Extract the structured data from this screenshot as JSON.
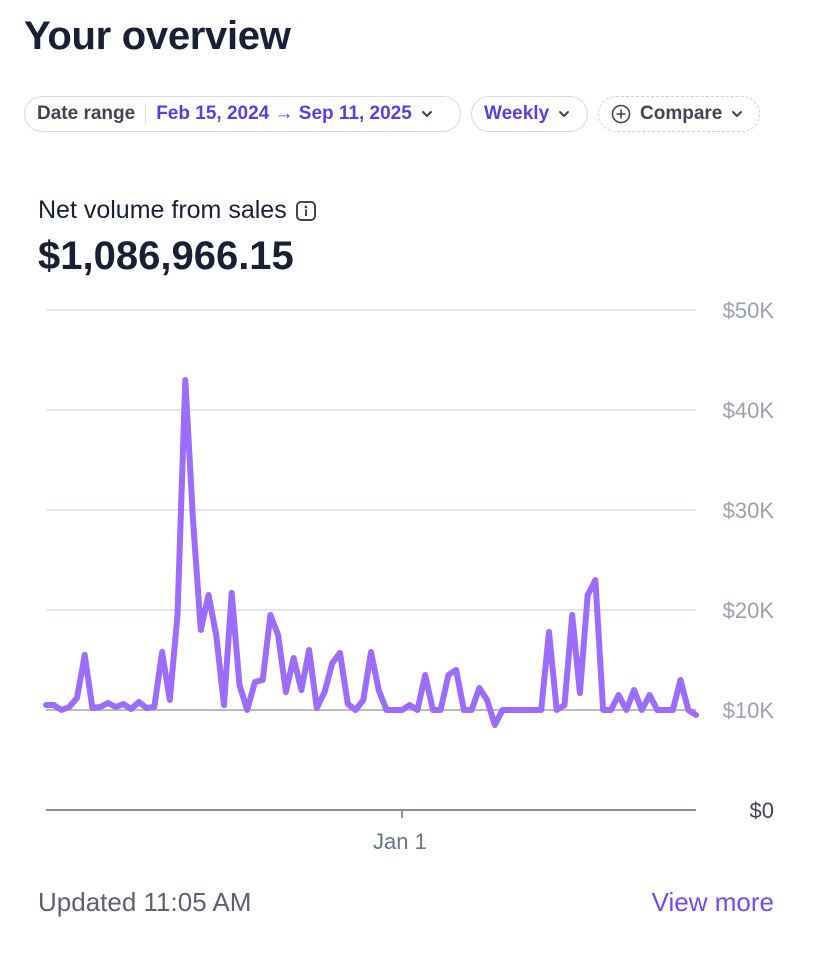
{
  "page": {
    "title": "Your overview"
  },
  "filters": {
    "date_range_label": "Date range",
    "date_range_value": "Feb 15, 2024 → Sep 11, 2025",
    "interval": "Weekly",
    "compare_label": "Compare"
  },
  "metric": {
    "label": "Net volume from sales",
    "value": "$1,086,966.15"
  },
  "footer": {
    "updated": "Updated 11:05 AM",
    "view_more": "View more"
  },
  "colors": {
    "line": "#9c6cff",
    "accent": "#5b3ee0",
    "grid": "#e3e6ec",
    "baseline": "#8a8f99"
  },
  "chart_data": {
    "type": "line",
    "title": "",
    "xlabel": "",
    "ylabel": "",
    "ylim": [
      0,
      50000
    ],
    "y_ticks": [
      0,
      10000,
      20000,
      30000,
      40000,
      50000
    ],
    "y_tick_labels": [
      "$0",
      "$10K",
      "$20K",
      "$30K",
      "$40K",
      "$50K"
    ],
    "x_ticks": [
      {
        "label": "Jan 1",
        "index": 46
      }
    ],
    "grid": true,
    "series": [
      {
        "values": [
          10500,
          10500,
          10000,
          10300,
          11200,
          15500,
          10200,
          10300,
          10700,
          10300,
          10600,
          10100,
          10800,
          10200,
          10300,
          15800,
          11000,
          19500,
          43000,
          29000,
          18000,
          21500,
          17500,
          10500,
          21700,
          12500,
          10000,
          12800,
          13000,
          19500,
          17500,
          11800,
          15200,
          12000,
          16000,
          10200,
          11800,
          14700,
          15700,
          10600,
          10000,
          11000,
          15800,
          12000,
          10000,
          10000,
          10000,
          10500,
          10000,
          13500,
          10000,
          10000,
          13500,
          14000,
          10000,
          10000,
          12200,
          11000,
          8500,
          10000,
          10000,
          10000,
          10000,
          10000,
          10000,
          17800,
          10000,
          10500,
          19500,
          11700,
          21500,
          23000,
          10000,
          10000,
          11500,
          10000,
          12000,
          10000,
          11500,
          10000,
          10000,
          10000,
          13000,
          10000,
          9500
        ]
      }
    ]
  }
}
